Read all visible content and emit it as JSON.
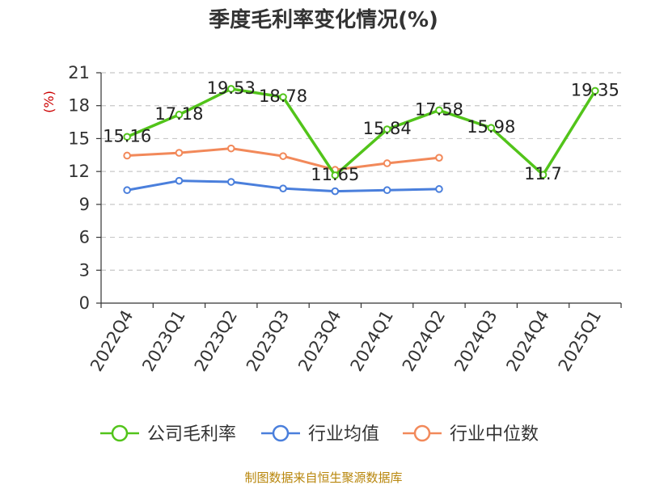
{
  "chart_data": {
    "type": "line",
    "title": "季度毛利率变化情况(%)",
    "ylabel": "(%)",
    "xlabel": "",
    "categories": [
      "2022Q4",
      "2023Q1",
      "2023Q2",
      "2023Q3",
      "2023Q4",
      "2024Q1",
      "2024Q2",
      "2024Q3",
      "2024Q4",
      "2025Q1"
    ],
    "ylim": [
      0,
      21
    ],
    "yticks": [
      0,
      3,
      6,
      9,
      12,
      15,
      18,
      21
    ],
    "grid": true,
    "legend_position": "bottom",
    "series": [
      {
        "name": "公司毛利率",
        "color": "#52c41a",
        "values": [
          15.16,
          17.18,
          19.53,
          18.78,
          11.65,
          15.84,
          17.58,
          15.98,
          11.7,
          19.35
        ],
        "labels": [
          "15.16",
          "17.18",
          "19.53",
          "18.78",
          "11.65",
          "15.84",
          "17.58",
          "15.98",
          "11.7",
          "19.35"
        ]
      },
      {
        "name": "行业均值",
        "color": "#4a7fdc",
        "values": [
          10.3,
          11.15,
          11.05,
          10.45,
          10.2,
          10.3,
          10.4,
          null,
          null,
          null
        ]
      },
      {
        "name": "行业中位数",
        "color": "#f2895a",
        "values": [
          13.45,
          13.7,
          14.1,
          13.4,
          12.15,
          12.75,
          13.25,
          null,
          null,
          null
        ]
      }
    ]
  },
  "footer": {
    "source": "制图数据来自恒生聚源数据库"
  }
}
